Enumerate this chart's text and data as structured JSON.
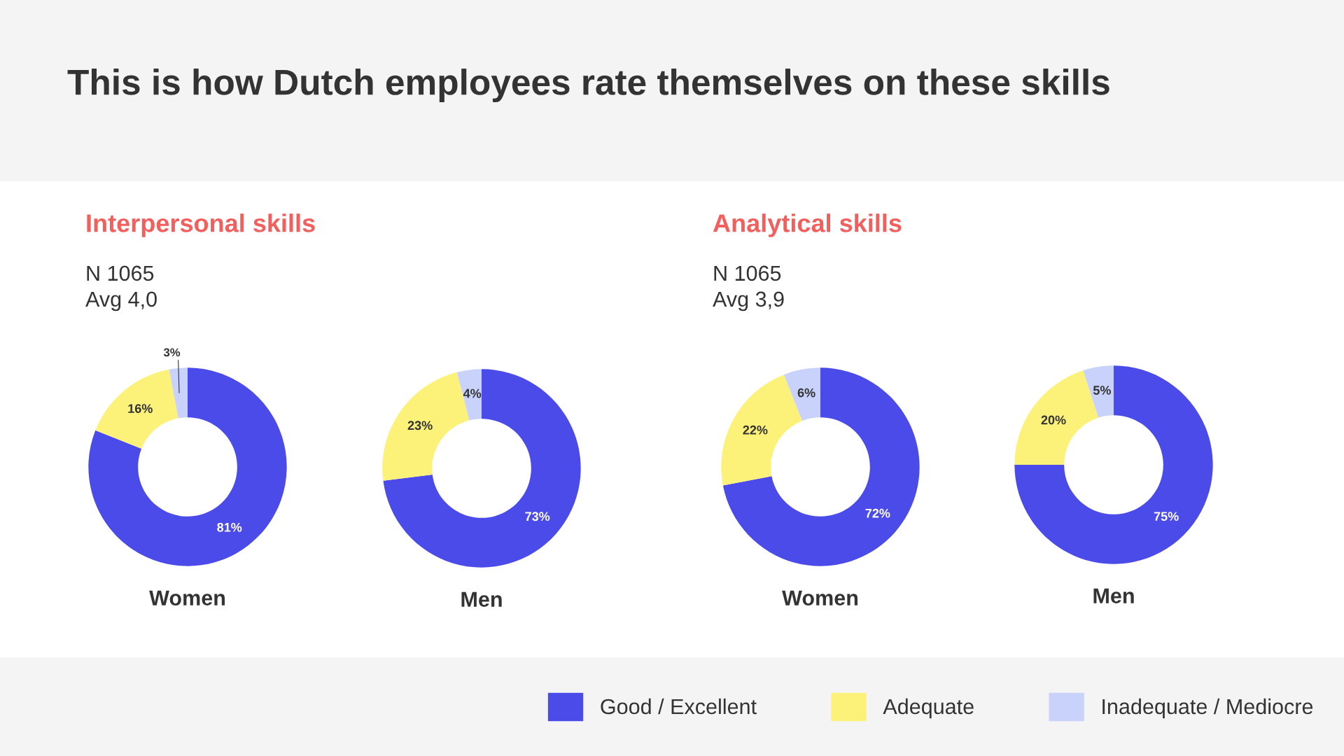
{
  "chart_data": [
    {
      "type": "donut",
      "title": "This is how Dutch employees rate themselves on these skills",
      "subtitle": "Interpersonal skills",
      "annotations": [
        "N 1065",
        "Avg 4,0"
      ],
      "xlabel": "Women",
      "legend": "bottom",
      "categories": [
        "Good / Excellent",
        "Adequate",
        "Inadequate / Mediocre"
      ],
      "values": [
        81,
        16,
        3
      ],
      "value_labels": [
        "81%",
        "16%",
        "3%"
      ],
      "colors": [
        "#4b4bea",
        "#fdf279",
        "#c8d2fb"
      ]
    },
    {
      "type": "donut",
      "xlabel": "Men",
      "categories": [
        null,
        null,
        null
      ],
      "values": [
        73,
        23,
        4
      ],
      "value_labels": [
        "73%",
        "23%",
        "4%"
      ],
      "colors": [
        "#4b4bea",
        "#fdf279",
        "#c8d2fb"
      ]
    },
    {
      "type": "donut",
      "subtitle": "Analytical skills",
      "annotations": [
        "N 1065",
        "Avg 3,9"
      ],
      "xlabel": "Women",
      "categories": [
        null,
        null,
        null
      ],
      "values": [
        72,
        22,
        6
      ],
      "value_labels": [
        "72%",
        "22%",
        "6%"
      ],
      "colors": [
        "#4b4bea",
        "#fdf279",
        "#c8d2fb"
      ]
    },
    {
      "type": "donut",
      "xlabel": "Men",
      "categories": [
        null,
        null,
        null
      ],
      "values": [
        75,
        20,
        5
      ],
      "value_labels": [
        "75%",
        "20%",
        "5%"
      ],
      "colors": [
        "#4b4bea",
        "#fdf279",
        "#c8d2fb"
      ]
    }
  ]
}
